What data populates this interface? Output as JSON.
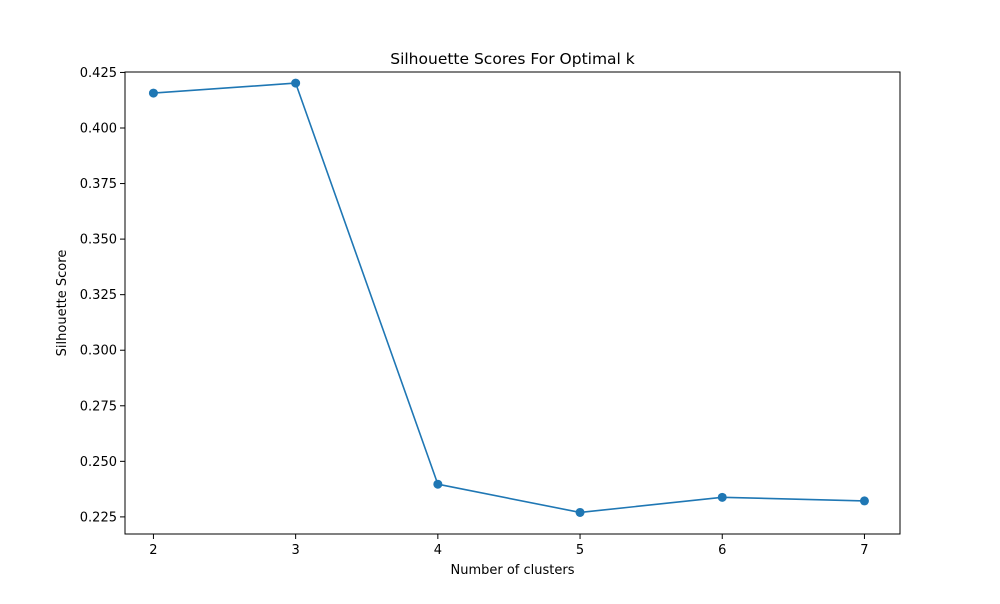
{
  "chart_data": {
    "type": "line",
    "title": "Silhouette Scores For Optimal k",
    "xlabel": "Number of clusters",
    "ylabel": "Silhouette Score",
    "x": [
      2,
      3,
      4,
      5,
      6,
      7
    ],
    "series": [
      {
        "values": [
          0.4157,
          0.4202,
          0.2397,
          0.227,
          0.2338,
          0.2322
        ],
        "color": "#1f77b4",
        "marker": "circle"
      }
    ],
    "xlim": [
      1.8,
      7.25
    ],
    "ylim": [
      0.2173,
      0.4252
    ],
    "xticks": [
      2,
      3,
      4,
      5,
      6,
      7
    ],
    "xtick_labels": [
      "2",
      "3",
      "4",
      "5",
      "6",
      "7"
    ],
    "yticks": [
      0.225,
      0.25,
      0.275,
      0.3,
      0.325,
      0.35,
      0.375,
      0.4,
      0.425
    ],
    "ytick_labels": [
      "0.225",
      "0.250",
      "0.275",
      "0.300",
      "0.325",
      "0.350",
      "0.375",
      "0.400",
      "0.425"
    ],
    "grid": false,
    "legend": "none"
  }
}
